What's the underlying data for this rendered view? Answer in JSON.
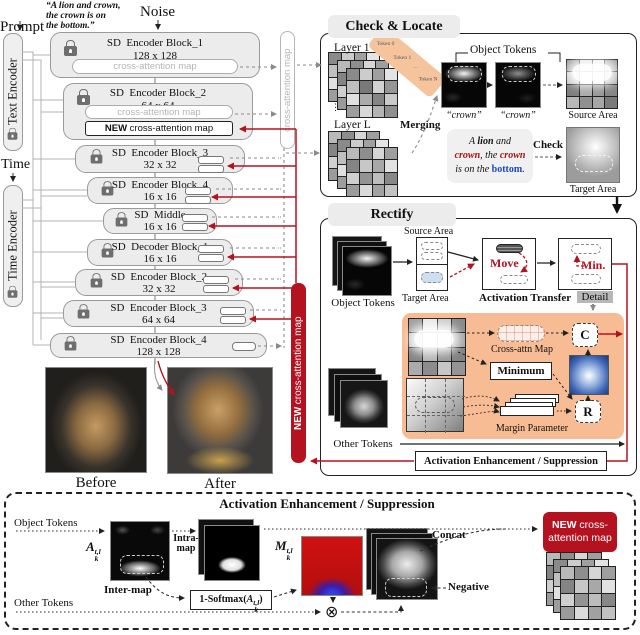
{
  "colors": {
    "red": "#b5121f",
    "orange": "#f8bc95",
    "red_word": "#a31414",
    "blue_word": "#1a46c8"
  },
  "left": {
    "prompt_label": "Prompt",
    "quote_lines": [
      "“A lion and crown,",
      "the crown is on",
      "the bottom.”"
    ],
    "noise_label": "Noise",
    "text_encoder": "Text Encoder",
    "time_label": "Time",
    "time_encoder": "Time Encoder",
    "blocks": [
      {
        "title": "SD  Encoder Block_1",
        "size": "128 x 128",
        "pill": "cross-attention map"
      },
      {
        "title": "SD  Encoder Block_2",
        "size": "64 x 64",
        "pill": "cross-attention map",
        "new_bold": "NEW",
        "new_rest": " cross-attention map"
      },
      {
        "title": "SD  Encoder Block_3",
        "size": "32 x 32"
      },
      {
        "title": "SD  Encoder Block_4",
        "size": "16 x 16"
      },
      {
        "title": "SD  Middle",
        "size": "16 x 16"
      },
      {
        "title": "SD  Decoder Block_1",
        "size": "16 x 16"
      },
      {
        "title": "SD  Encoder Block_2",
        "size": "32 x 32"
      },
      {
        "title": "SD  Encoder Block_3",
        "size": "64 x 64"
      },
      {
        "title": "SD  Encoder Block_4",
        "size": "128 x 128"
      }
    ],
    "vertical_pill": "cross-attention map",
    "red_bar_bold": "NEW",
    "red_bar_rest": " cross-attention map",
    "before_label": "Before",
    "after_label": "After"
  },
  "check_locate": {
    "title": "Check & Locate",
    "layer1": "Layer 1",
    "layerL": "Layer L",
    "dots": "⋮",
    "tokens": [
      "Token 0",
      "Token 1",
      "⋯",
      "Token N"
    ],
    "merging": "Merging",
    "object_tokens": "Object Tokens",
    "crown1": "“crown”",
    "crown2": "“crown”",
    "source_area": "Source Area",
    "check": "Check",
    "target_area": "Target Area",
    "prompt_rich": [
      {
        "text": "A ",
        "cls": "i"
      },
      {
        "text": "lion",
        "cls": "bi"
      },
      {
        "text": " and",
        "cls": "i"
      },
      {
        "br": true
      },
      {
        "text": "crown",
        "cls": "bi red"
      },
      {
        "text": ", the ",
        "cls": "i"
      },
      {
        "text": "crown",
        "cls": "bi red"
      },
      {
        "br": true
      },
      {
        "text": "is on the ",
        "cls": "i"
      },
      {
        "text": "bottom",
        "cls": "b blue"
      },
      {
        "text": ".",
        "cls": "i"
      }
    ]
  },
  "rectify": {
    "title": "Rectify",
    "object_tokens": "Object Tokens",
    "source_area": "Source Area",
    "target_area": "Target Area",
    "move": "Move",
    "min": "Min.",
    "activation_transfer": "Activation Transfer",
    "detail": "Detail",
    "cross_attn_map": "Cross-attn Map",
    "c": "C",
    "minimum": "Minimum",
    "margin_parameter": "Margin Parameter",
    "r": "R",
    "other_tokens": "Other Tokens",
    "aes": "Activation Enhancement / Suppression"
  },
  "bottom": {
    "title": "Activation Enhancement / Suppression",
    "object_tokens": "Object Tokens",
    "other_tokens": "Other Tokens",
    "a_label": {
      "base": "A",
      "sup": "t,l",
      "sub": "k"
    },
    "m_label": {
      "base": "M",
      "sup": "t,l",
      "sub": "k"
    },
    "intra_line1": "Intra-",
    "intra_line2": "map",
    "inter_map": "Inter-map",
    "softmax_pre": "1-Softmax(",
    "softmax_base": "A",
    "softmax_sup": "t,l",
    "softmax_sub": "k",
    "softmax_post": ")",
    "concat": "Concat",
    "negative": "Negative",
    "otimes": "⊗",
    "badge_bold": "NEW",
    "badge_rest": " cross-",
    "badge_line2": "attention map"
  },
  "grids": {
    "g1": [
      "#b9b9b9",
      "#8e8e8e",
      "#d6d6d6",
      "#9f9f9f",
      "#848484",
      "#c7c7c7",
      "#a8a8a8",
      "#e2e2e2",
      "#cfcfcf",
      "#939393",
      "#bdbdbd",
      "#888888",
      "#9b9b9b",
      "#dadada",
      "#a1a1a1",
      "#c2c2c2"
    ],
    "g2": [
      "#8a8a8a",
      "#cccccc",
      "#a0a0a0",
      "#e4e4e4",
      "#bfbfbf",
      "#797979",
      "#d2d2d2",
      "#969696",
      "#e0e0e0",
      "#ababab",
      "#858585",
      "#c9c9c9",
      "#9d9d9d",
      "#d8d8d8",
      "#b3b3b3",
      "#8f8f8f"
    ],
    "src": [
      "#9a9a9a",
      "#dcdcdc",
      "#e8e8e8",
      "#a2a2a2",
      "#c4c4c4",
      "#f4f4f4",
      "#fafafa",
      "#b0b0b0",
      "#7f7f7f",
      "#ababab",
      "#989898",
      "#868686",
      "#b8b8b8",
      "#909090",
      "#a6a6a6",
      "#7b7b7b"
    ],
    "org": [
      "#9f9f9f",
      "#e8e8e8",
      "#cccccc",
      "#8b8b8b",
      "#c0c0c0",
      "#f2f2f2",
      "#ededed",
      "#a5a5a5",
      "#858585",
      "#b5b5b5",
      "#989898",
      "#828282",
      "#ababab",
      "#8d8d8d",
      "#c6c6c6",
      "#949494"
    ]
  }
}
